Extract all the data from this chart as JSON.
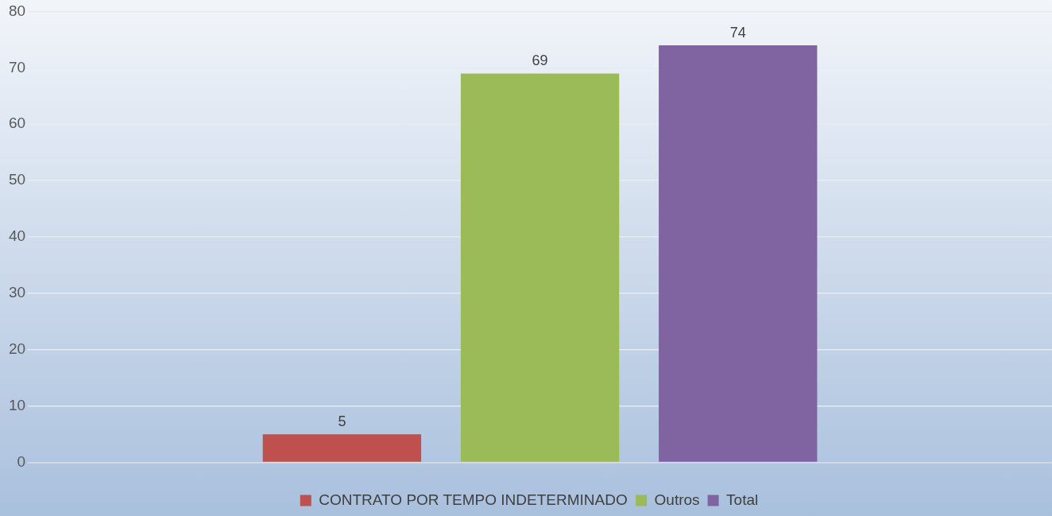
{
  "chart_data": {
    "type": "bar",
    "categories": [
      null
    ],
    "series": [
      {
        "name": "CONTRATO POR TEMPO INDETERMINADO",
        "color": "#c0504d",
        "values": [
          5
        ]
      },
      {
        "name": "Outros",
        "color": "#9bbb59",
        "values": [
          69
        ]
      },
      {
        "name": "Total",
        "color": "#8064a2",
        "values": [
          74
        ]
      }
    ],
    "ylim": [
      0,
      80
    ],
    "yticks": [
      0,
      10,
      20,
      30,
      40,
      50,
      60,
      70,
      80
    ],
    "grid": "y",
    "legend": "bottom",
    "data_labels": true
  }
}
